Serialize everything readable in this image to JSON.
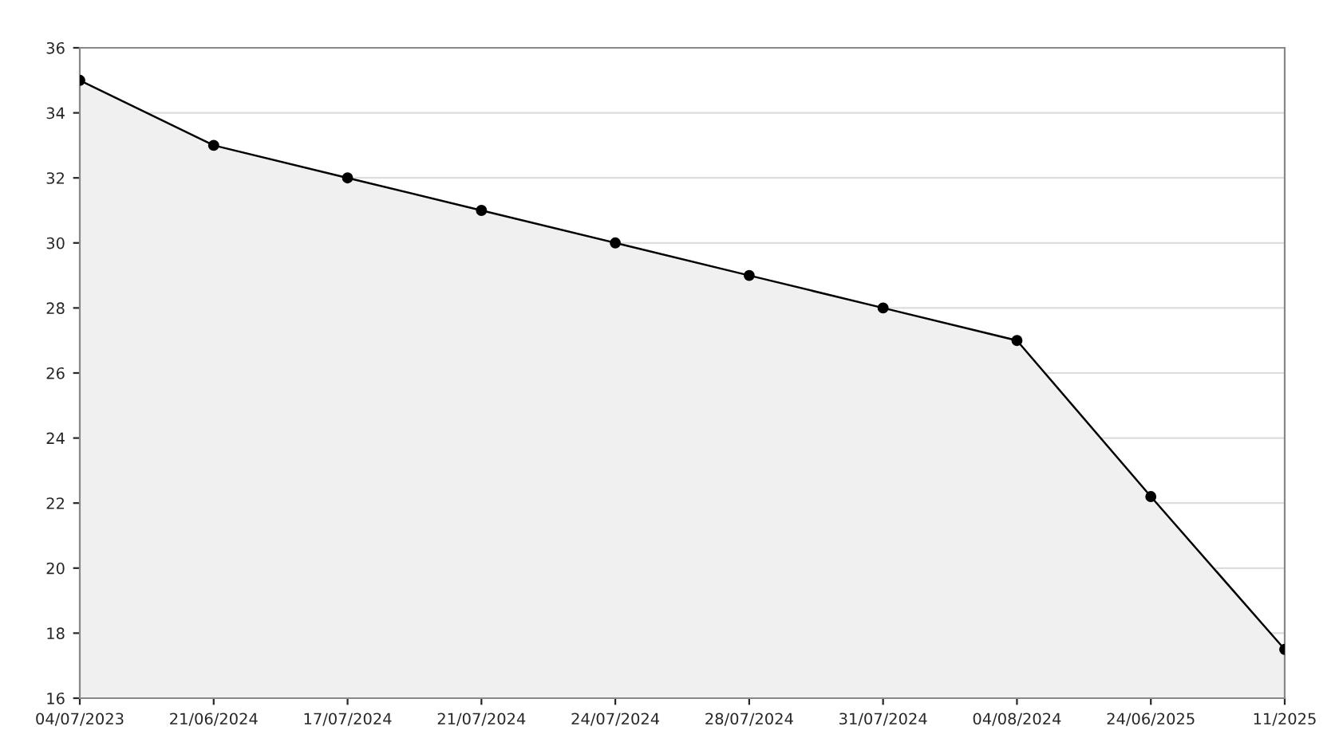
{
  "chart_data": {
    "type": "area",
    "categories": [
      "04/07/2023",
      "21/06/2024",
      "17/07/2024",
      "21/07/2024",
      "24/07/2024",
      "28/07/2024",
      "31/07/2024",
      "04/08/2024",
      "24/06/2025",
      "11/2025"
    ],
    "series": [
      {
        "color": "#000000",
        "values": [
          35,
          33,
          32,
          31,
          30,
          29,
          28,
          27,
          22.2,
          17.5
        ]
      }
    ],
    "ylim": [
      16,
      36
    ],
    "yticks": [
      16,
      18,
      20,
      22,
      24,
      26,
      28,
      30,
      32,
      34,
      36
    ],
    "grid": "y",
    "marker": "circle",
    "line_style": "solid"
  }
}
